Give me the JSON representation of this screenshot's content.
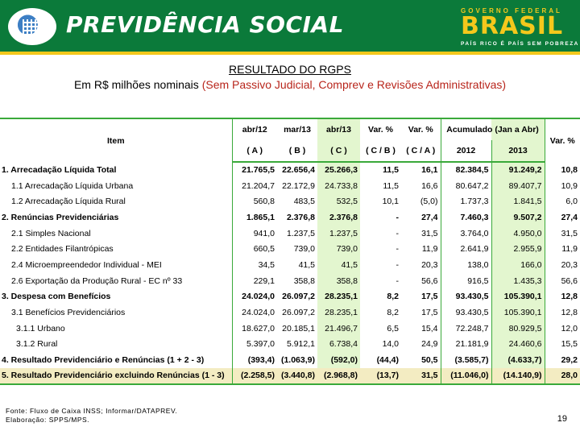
{
  "header": {
    "brand": "PREVIDÊNCIA SOCIAL",
    "gov_top": "GOVERNO FEDERAL",
    "gov_name": "BRASIL",
    "gov_tagline": "PAÍS RICO É PAÍS SEM POBREZA",
    "colors": {
      "green": "#0b7a3a",
      "yellow": "#f4c81c"
    }
  },
  "title": "RESULTADO DO RGPS",
  "subtitle_plain": "Em R$ milhões nominais",
  "subtitle_red": "(Sem Passivo Judicial, Comprev e Revisões Administrativas)",
  "table": {
    "headers": {
      "item": "Item",
      "c1": "abr/12",
      "c1b": "( A )",
      "c2": "mar/13",
      "c2b": "( B )",
      "c3": "abr/13",
      "c3b": "( C )",
      "c4": "Var. %",
      "c4b": "( C / B )",
      "c5": "Var. %",
      "c5b": "( C / A )",
      "acc": "Acumulado (Jan a Abr)",
      "acc1": "2012",
      "acc2": "2013",
      "c8": "Var. %"
    },
    "rows": [
      {
        "label": "1. Arrecadação Líquida Total",
        "v": [
          "21.765,5",
          "22.656,4",
          "25.266,3",
          "11,5",
          "16,1",
          "82.384,5",
          "91.249,2",
          "10,8"
        ]
      },
      {
        "label": "1.1 Arrecadação Líquida Urbana",
        "v": [
          "21.204,7",
          "22.172,9",
          "24.733,8",
          "11,5",
          "16,6",
          "80.647,2",
          "89.407,7",
          "10,9"
        ]
      },
      {
        "label": "1.2 Arrecadação Líquida Rural",
        "v": [
          "560,8",
          "483,5",
          "532,5",
          "10,1",
          "(5,0)",
          "1.737,3",
          "1.841,5",
          "6,0"
        ]
      },
      {
        "label": "2. Renúncias Previdenciárias",
        "v": [
          "1.865,1",
          "2.376,8",
          "2.376,8",
          "-",
          "27,4",
          "7.460,3",
          "9.507,2",
          "27,4"
        ]
      },
      {
        "label": "2.1 Simples Nacional",
        "v": [
          "941,0",
          "1.237,5",
          "1.237,5",
          "-",
          "31,5",
          "3.764,0",
          "4.950,0",
          "31,5"
        ]
      },
      {
        "label": "2.2 Entidades Filantrópicas",
        "v": [
          "660,5",
          "739,0",
          "739,0",
          "-",
          "11,9",
          "2.641,9",
          "2.955,9",
          "11,9"
        ]
      },
      {
        "label": "2.4 Microempreendedor Individual - MEI",
        "v": [
          "34,5",
          "41,5",
          "41,5",
          "-",
          "20,3",
          "138,0",
          "166,0",
          "20,3"
        ]
      },
      {
        "label": "2.6 Exportação da Produção Rural - EC nº 33",
        "v": [
          "229,1",
          "358,8",
          "358,8",
          "-",
          "56,6",
          "916,5",
          "1.435,3",
          "56,6"
        ]
      },
      {
        "label": "3. Despesa com Benefícios",
        "v": [
          "24.024,0",
          "26.097,2",
          "28.235,1",
          "8,2",
          "17,5",
          "93.430,5",
          "105.390,1",
          "12,8"
        ]
      },
      {
        "label": "3.1 Benefícios Previdenciários",
        "v": [
          "24.024,0",
          "26.097,2",
          "28.235,1",
          "8,2",
          "17,5",
          "93.430,5",
          "105.390,1",
          "12,8"
        ]
      },
      {
        "label": "3.1.1 Urbano",
        "v": [
          "18.627,0",
          "20.185,1",
          "21.496,7",
          "6,5",
          "15,4",
          "72.248,7",
          "80.929,5",
          "12,0"
        ]
      },
      {
        "label": "3.1.2 Rural",
        "v": [
          "5.397,0",
          "5.912,1",
          "6.738,4",
          "14,0",
          "24,9",
          "21.181,9",
          "24.460,6",
          "15,5"
        ]
      },
      {
        "label": "4. Resultado Previdenciário e Renúncias (1 + 2 - 3)",
        "v": [
          "(393,4)",
          "(1.063,9)",
          "(592,0)",
          "(44,4)",
          "50,5",
          "(3.585,7)",
          "(4.633,7)",
          "29,2"
        ]
      },
      {
        "label": "5. Resultado Previdenciário excluindo Renúncias (1 - 3)",
        "v": [
          "(2.258,5)",
          "(3.440,8)",
          "(2.968,8)",
          "(13,7)",
          "31,5",
          "(11.046,0)",
          "(14.140,9)",
          "28,0"
        ]
      }
    ]
  },
  "footer": {
    "source": "Fonte: Fluxo de Caixa INSS; Informar/DATAPREV.",
    "author": "Elaboração: SPPS/MPS.",
    "page": "19"
  }
}
